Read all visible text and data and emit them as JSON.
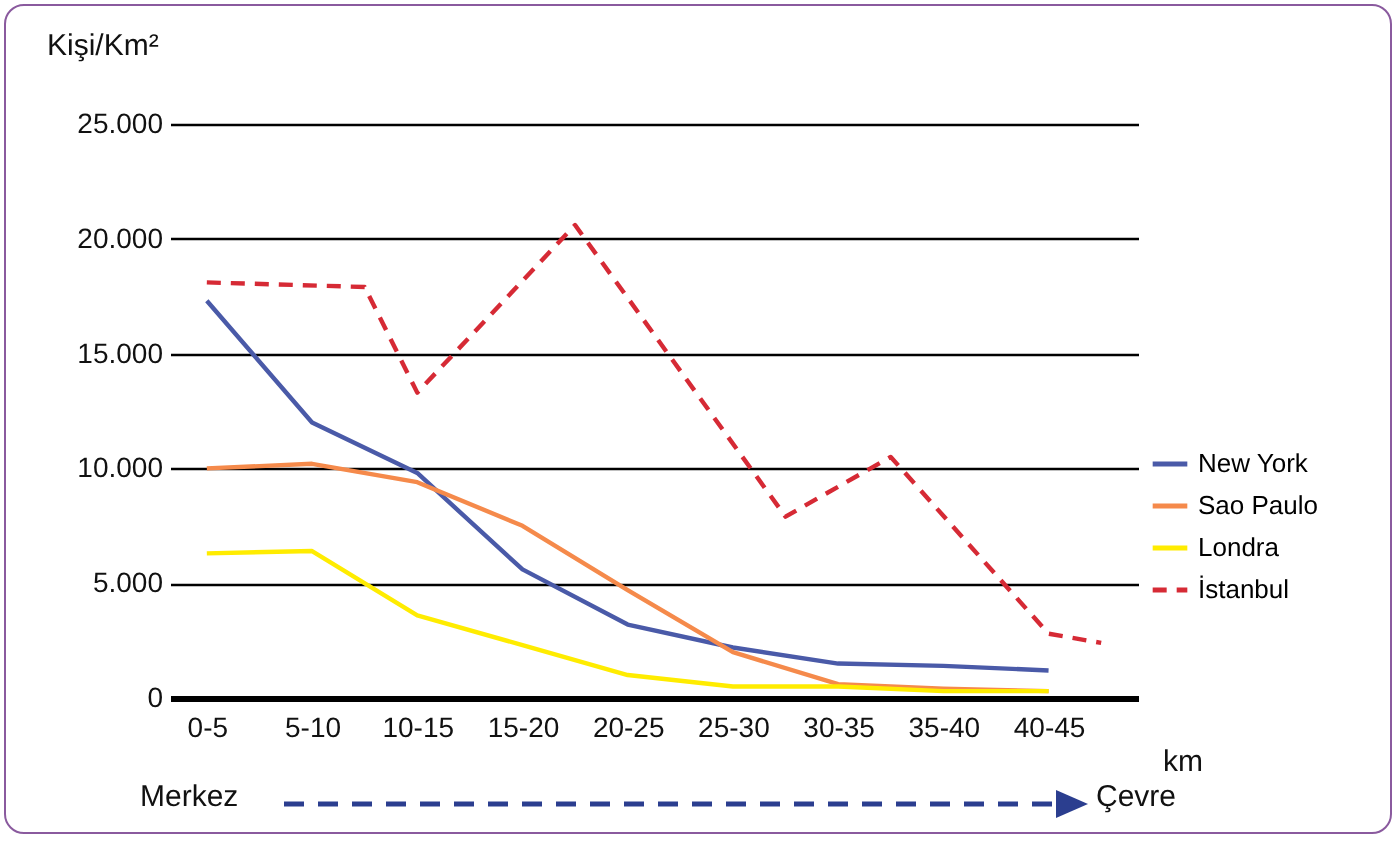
{
  "chart_data": {
    "type": "line",
    "ylabel": "Kişi/Km²",
    "xlabel": "km",
    "categories": [
      "0-5",
      null,
      "5-10",
      null,
      "10-15",
      null,
      "15-20",
      null,
      "20-25",
      null,
      "25-30",
      null,
      "30-35",
      null,
      "35-40",
      null,
      "40-45",
      null
    ],
    "ylim": [
      0,
      25000
    ],
    "yticks": [
      0,
      {
        "value": 5000,
        "label": "5.000"
      },
      {
        "value": 10000,
        "label": "10.000"
      },
      {
        "value": 15000,
        "label": "15.000"
      },
      {
        "value": 20000,
        "label": "20.000"
      },
      {
        "value": 25000,
        "label": "25.000"
      }
    ],
    "grid": "y",
    "legend": "right",
    "series": [
      {
        "name": "New York",
        "color": "#4a5aa8",
        "line_style": "solid",
        "values": [
          17300,
          null,
          12000,
          null,
          9800,
          null,
          5600,
          null,
          3200,
          null,
          2200,
          null,
          1500,
          null,
          1400,
          null,
          1200,
          null
        ]
      },
      {
        "name": "Sao Paulo",
        "color": "#f58a4b",
        "line_style": "solid",
        "values": [
          10000,
          null,
          10200,
          null,
          9400,
          null,
          7500,
          null,
          4700,
          null,
          2000,
          null,
          600,
          null,
          400,
          null,
          300,
          null
        ]
      },
      {
        "name": "Londra",
        "color": "#ffec00",
        "line_style": "solid",
        "values": [
          6300,
          null,
          6400,
          null,
          3600,
          null,
          2300,
          null,
          1000,
          null,
          500,
          null,
          500,
          null,
          300,
          null,
          300,
          null
        ]
      },
      {
        "name": "İstanbul",
        "color": "#d62a35",
        "line_style": "dashed",
        "values": [
          18100,
          null,
          null,
          17900,
          13300,
          null,
          null,
          20600,
          null,
          null,
          null,
          7900,
          null,
          10500,
          null,
          null,
          2800,
          2400
        ]
      }
    ],
    "annotations": [
      "Merkez",
      "Çevre"
    ]
  }
}
